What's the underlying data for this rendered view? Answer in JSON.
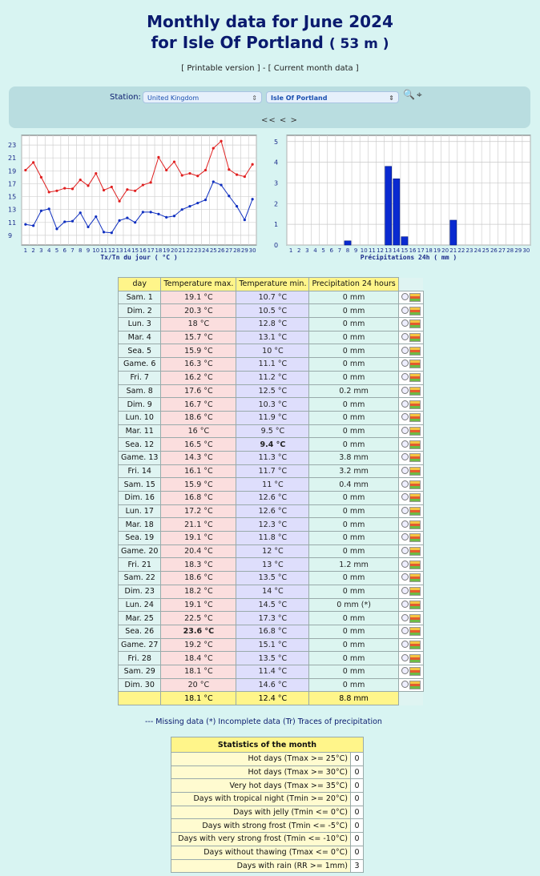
{
  "header": {
    "title_line1": "Monthly data for June 2024",
    "title_line2": "for Isle Of Portland",
    "altitude": "( 53 m )",
    "printable_link": "Printable version",
    "current_link": "Current month data"
  },
  "station": {
    "label": "Station:",
    "country": "United Kingdom",
    "station": "Isle Of Portland",
    "nav": "<< < >"
  },
  "chart_data": [
    {
      "type": "line",
      "title": "",
      "xlabel": "Tx/Tn du jour ( °C )",
      "ylabel": "",
      "x": [
        1,
        2,
        3,
        4,
        5,
        6,
        7,
        8,
        9,
        10,
        11,
        12,
        13,
        14,
        15,
        16,
        17,
        18,
        19,
        20,
        21,
        22,
        23,
        24,
        25,
        26,
        27,
        28,
        29,
        30
      ],
      "series": [
        {
          "name": "",
          "color": "#e02020",
          "values": [
            19.1,
            20.3,
            18,
            15.7,
            15.9,
            16.3,
            16.2,
            17.6,
            16.7,
            18.6,
            16,
            16.5,
            14.3,
            16.1,
            15.9,
            16.8,
            17.2,
            21.1,
            19.1,
            20.4,
            18.3,
            18.6,
            18.2,
            19.1,
            22.5,
            23.6,
            19.2,
            18.4,
            18.1,
            20
          ]
        },
        {
          "name": "",
          "color": "#1030c0",
          "values": [
            10.7,
            10.5,
            12.8,
            13.1,
            10,
            11.1,
            11.2,
            12.5,
            10.3,
            11.9,
            9.5,
            9.4,
            11.3,
            11.7,
            11,
            12.6,
            12.6,
            12.3,
            11.8,
            12,
            13,
            13.5,
            14,
            14.5,
            17.3,
            16.8,
            15.1,
            13.5,
            11.4,
            14.6
          ]
        }
      ],
      "yticks": [
        9,
        11,
        13,
        15,
        17,
        19,
        21,
        23
      ],
      "ylim": [
        7.5,
        24.5
      ],
      "grid": true
    },
    {
      "type": "bar",
      "title": "",
      "xlabel": "Précipitations 24h ( mm )",
      "ylabel": "",
      "categories": [
        1,
        2,
        3,
        4,
        5,
        6,
        7,
        8,
        9,
        10,
        11,
        12,
        13,
        14,
        15,
        16,
        17,
        18,
        19,
        20,
        21,
        22,
        23,
        24,
        25,
        26,
        27,
        28,
        29,
        30
      ],
      "values": [
        0,
        0,
        0,
        0,
        0,
        0,
        0,
        0.2,
        0,
        0,
        0,
        0,
        3.8,
        3.2,
        0.4,
        0,
        0,
        0,
        0,
        0,
        1.2,
        0,
        0,
        0,
        0,
        0,
        0,
        0,
        0,
        0
      ],
      "yticks": [
        0,
        1,
        2,
        3,
        4,
        5
      ],
      "ylim": [
        0,
        5.3
      ],
      "grid": true
    }
  ],
  "table": {
    "headers": [
      "day",
      "Temperature max.",
      "Temperature min.",
      "Precipitation 24 hours"
    ],
    "rows": [
      [
        "Sam. 1",
        "19.1 °C",
        "10.7 °C",
        "0 mm"
      ],
      [
        "Dim. 2",
        "20.3 °C",
        "10.5 °C",
        "0 mm"
      ],
      [
        "Lun. 3",
        "18 °C",
        "12.8 °C",
        "0 mm"
      ],
      [
        "Mar. 4",
        "15.7 °C",
        "13.1 °C",
        "0 mm"
      ],
      [
        "Sea. 5",
        "15.9 °C",
        "10 °C",
        "0 mm"
      ],
      [
        "Game. 6",
        "16.3 °C",
        "11.1 °C",
        "0 mm"
      ],
      [
        "Fri. 7",
        "16.2 °C",
        "11.2 °C",
        "0 mm"
      ],
      [
        "Sam. 8",
        "17.6 °C",
        "12.5 °C",
        "0.2 mm"
      ],
      [
        "Dim. 9",
        "16.7 °C",
        "10.3 °C",
        "0 mm"
      ],
      [
        "Lun. 10",
        "18.6 °C",
        "11.9 °C",
        "0 mm"
      ],
      [
        "Mar. 11",
        "16 °C",
        "9.5 °C",
        "0 mm"
      ],
      [
        "Sea. 12",
        "16.5 °C",
        "9.4 °C",
        "0 mm"
      ],
      [
        "Game. 13",
        "14.3 °C",
        "11.3 °C",
        "3.8 mm"
      ],
      [
        "Fri. 14",
        "16.1 °C",
        "11.7 °C",
        "3.2 mm"
      ],
      [
        "Sam. 15",
        "15.9 °C",
        "11 °C",
        "0.4 mm"
      ],
      [
        "Dim. 16",
        "16.8 °C",
        "12.6 °C",
        "0 mm"
      ],
      [
        "Lun. 17",
        "17.2 °C",
        "12.6 °C",
        "0 mm"
      ],
      [
        "Mar. 18",
        "21.1 °C",
        "12.3 °C",
        "0 mm"
      ],
      [
        "Sea. 19",
        "19.1 °C",
        "11.8 °C",
        "0 mm"
      ],
      [
        "Game. 20",
        "20.4 °C",
        "12 °C",
        "0 mm"
      ],
      [
        "Fri. 21",
        "18.3 °C",
        "13 °C",
        "1.2 mm"
      ],
      [
        "Sam. 22",
        "18.6 °C",
        "13.5 °C",
        "0 mm"
      ],
      [
        "Dim. 23",
        "18.2 °C",
        "14 °C",
        "0 mm"
      ],
      [
        "Lun. 24",
        "19.1 °C",
        "14.5 °C",
        "0 mm (*)"
      ],
      [
        "Mar. 25",
        "22.5 °C",
        "17.3 °C",
        "0 mm"
      ],
      [
        "Sea. 26",
        "23.6 °C",
        "16.8 °C",
        "0 mm"
      ],
      [
        "Game. 27",
        "19.2 °C",
        "15.1 °C",
        "0 mm"
      ],
      [
        "Fri. 28",
        "18.4 °C",
        "13.5 °C",
        "0 mm"
      ],
      [
        "Sam. 29",
        "18.1 °C",
        "11.4 °C",
        "0 mm"
      ],
      [
        "Dim. 30",
        "20 °C",
        "14.6 °C",
        "0 mm"
      ]
    ],
    "totals": [
      "",
      "18.1 °C",
      "12.4 °C",
      "8.8 mm"
    ],
    "max_highlight_day": "Sea. 26",
    "min_highlight_day": "Sea. 12"
  },
  "legend": "--- Missing data (*) Incomplete data (Tr) Traces of precipitation",
  "stats": {
    "title": "Statistics of the month",
    "rows": [
      [
        "Hot days (Tmax >= 25°C)",
        "0"
      ],
      [
        "Hot days (Tmax >= 30°C)",
        "0"
      ],
      [
        "Very hot days (Tmax >= 35°C)",
        "0"
      ],
      [
        "Days with tropical night (Tmin >= 20°C)",
        "0"
      ],
      [
        "Days with jelly (Tmin <= 0°C)",
        "0"
      ],
      [
        "Days with strong frost (Tmin <= -5°C)",
        "0"
      ],
      [
        "Days with very strong frost (Tmin <= -10°C)",
        "0"
      ],
      [
        "Days without thawing (Tmax <= 0°C)",
        "0"
      ],
      [
        "Days with rain (RR >= 1mm)",
        "3"
      ]
    ]
  }
}
